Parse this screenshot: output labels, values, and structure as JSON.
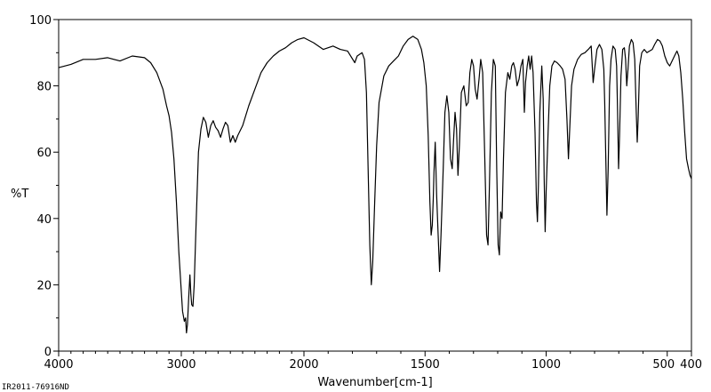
{
  "chart_data": {
    "type": "line",
    "xlabel": "Wavenumber[cm-1]",
    "ylabel": "%T",
    "xlim": [
      4000,
      400
    ],
    "ylim": [
      0,
      100
    ],
    "x_ticks": [
      4000,
      3000,
      2000,
      1500,
      1000,
      500,
      400
    ],
    "x_tick_labels": [
      "4000",
      "3000",
      "2000",
      "1500",
      "1000",
      "500",
      "400"
    ],
    "y_ticks": [
      0,
      20,
      40,
      60,
      80,
      100
    ],
    "y_tick_labels": [
      "0",
      "20",
      "40",
      "60",
      "80",
      "100"
    ],
    "grid": false,
    "line_color": "#000000",
    "footer_id": "IR2011-76916ND",
    "series": [
      {
        "points": [
          [
            4000,
            85.5
          ],
          [
            3900,
            86.5
          ],
          [
            3800,
            88
          ],
          [
            3700,
            88
          ],
          [
            3600,
            88.5
          ],
          [
            3500,
            87.5
          ],
          [
            3400,
            89
          ],
          [
            3300,
            88.5
          ],
          [
            3250,
            87
          ],
          [
            3200,
            84
          ],
          [
            3150,
            79
          ],
          [
            3120,
            74
          ],
          [
            3100,
            71
          ],
          [
            3080,
            66
          ],
          [
            3060,
            58
          ],
          [
            3040,
            45
          ],
          [
            3020,
            30
          ],
          [
            3000,
            18
          ],
          [
            2990,
            12
          ],
          [
            2975,
            9
          ],
          [
            2965,
            10
          ],
          [
            2958,
            5.5
          ],
          [
            2950,
            8
          ],
          [
            2940,
            16
          ],
          [
            2930,
            23
          ],
          [
            2922,
            17
          ],
          [
            2915,
            14
          ],
          [
            2905,
            13.5
          ],
          [
            2895,
            20
          ],
          [
            2880,
            38
          ],
          [
            2860,
            60
          ],
          [
            2840,
            67
          ],
          [
            2820,
            70.5
          ],
          [
            2800,
            69
          ],
          [
            2780,
            64.5
          ],
          [
            2760,
            68
          ],
          [
            2740,
            69.5
          ],
          [
            2720,
            67.5
          ],
          [
            2700,
            66.5
          ],
          [
            2680,
            64.5
          ],
          [
            2660,
            67
          ],
          [
            2640,
            69
          ],
          [
            2620,
            68
          ],
          [
            2600,
            63
          ],
          [
            2580,
            65
          ],
          [
            2560,
            63
          ],
          [
            2540,
            65
          ],
          [
            2500,
            68
          ],
          [
            2450,
            74
          ],
          [
            2400,
            79
          ],
          [
            2350,
            84
          ],
          [
            2300,
            87
          ],
          [
            2250,
            89
          ],
          [
            2200,
            90.5
          ],
          [
            2150,
            91.5
          ],
          [
            2100,
            93
          ],
          [
            2050,
            94
          ],
          [
            2000,
            94.5
          ],
          [
            1960,
            93
          ],
          [
            1920,
            91
          ],
          [
            1880,
            92
          ],
          [
            1850,
            91
          ],
          [
            1820,
            90.5
          ],
          [
            1790,
            87
          ],
          [
            1780,
            89
          ],
          [
            1760,
            90
          ],
          [
            1750,
            88
          ],
          [
            1742,
            78
          ],
          [
            1735,
            55
          ],
          [
            1728,
            32
          ],
          [
            1722,
            20
          ],
          [
            1716,
            27
          ],
          [
            1708,
            45
          ],
          [
            1700,
            62
          ],
          [
            1690,
            75
          ],
          [
            1670,
            83
          ],
          [
            1650,
            86
          ],
          [
            1630,
            87.5
          ],
          [
            1610,
            89
          ],
          [
            1590,
            92
          ],
          [
            1570,
            94
          ],
          [
            1550,
            95
          ],
          [
            1530,
            94
          ],
          [
            1515,
            91
          ],
          [
            1505,
            87
          ],
          [
            1495,
            80
          ],
          [
            1487,
            65
          ],
          [
            1480,
            45
          ],
          [
            1475,
            35
          ],
          [
            1470,
            38
          ],
          [
            1466,
            46
          ],
          [
            1463,
            54
          ],
          [
            1458,
            63
          ],
          [
            1452,
            47
          ],
          [
            1446,
            35
          ],
          [
            1440,
            24
          ],
          [
            1434,
            35
          ],
          [
            1425,
            55
          ],
          [
            1418,
            72
          ],
          [
            1410,
            77
          ],
          [
            1402,
            72
          ],
          [
            1395,
            58
          ],
          [
            1388,
            55
          ],
          [
            1382,
            64
          ],
          [
            1376,
            72
          ],
          [
            1370,
            67
          ],
          [
            1364,
            53
          ],
          [
            1358,
            62
          ],
          [
            1350,
            78
          ],
          [
            1340,
            80
          ],
          [
            1330,
            74
          ],
          [
            1322,
            75
          ],
          [
            1315,
            84
          ],
          [
            1307,
            88
          ],
          [
            1300,
            86
          ],
          [
            1293,
            79
          ],
          [
            1285,
            76
          ],
          [
            1277,
            82
          ],
          [
            1270,
            88
          ],
          [
            1262,
            84
          ],
          [
            1254,
            60
          ],
          [
            1246,
            35
          ],
          [
            1240,
            32
          ],
          [
            1234,
            50
          ],
          [
            1226,
            78
          ],
          [
            1218,
            88
          ],
          [
            1210,
            86
          ],
          [
            1204,
            55
          ],
          [
            1198,
            32
          ],
          [
            1193,
            29
          ],
          [
            1188,
            42
          ],
          [
            1182,
            40
          ],
          [
            1176,
            58
          ],
          [
            1168,
            78
          ],
          [
            1158,
            84
          ],
          [
            1150,
            82
          ],
          [
            1142,
            86
          ],
          [
            1135,
            87
          ],
          [
            1128,
            85
          ],
          [
            1120,
            80
          ],
          [
            1112,
            82
          ],
          [
            1104,
            86
          ],
          [
            1096,
            88
          ],
          [
            1090,
            72
          ],
          [
            1085,
            81
          ],
          [
            1078,
            86
          ],
          [
            1072,
            89
          ],
          [
            1066,
            85
          ],
          [
            1060,
            89
          ],
          [
            1054,
            84
          ],
          [
            1046,
            66
          ],
          [
            1040,
            45
          ],
          [
            1036,
            39
          ],
          [
            1032,
            50
          ],
          [
            1026,
            72
          ],
          [
            1018,
            86
          ],
          [
            1012,
            76
          ],
          [
            1008,
            52
          ],
          [
            1004,
            36
          ],
          [
            1000,
            48
          ],
          [
            992,
            66
          ],
          [
            985,
            80
          ],
          [
            976,
            86
          ],
          [
            966,
            87.5
          ],
          [
            955,
            87
          ],
          [
            942,
            86
          ],
          [
            932,
            85
          ],
          [
            922,
            82
          ],
          [
            914,
            70
          ],
          [
            908,
            58
          ],
          [
            902,
            68
          ],
          [
            895,
            80
          ],
          [
            885,
            85
          ],
          [
            870,
            88
          ],
          [
            855,
            89.5
          ],
          [
            840,
            90
          ],
          [
            826,
            91
          ],
          [
            814,
            92
          ],
          [
            806,
            81
          ],
          [
            800,
            85
          ],
          [
            790,
            91
          ],
          [
            780,
            92.5
          ],
          [
            770,
            91
          ],
          [
            762,
            85
          ],
          [
            758,
            75
          ],
          [
            754,
            60
          ],
          [
            749,
            41
          ],
          [
            744,
            55
          ],
          [
            738,
            80
          ],
          [
            732,
            88
          ],
          [
            724,
            92
          ],
          [
            715,
            91
          ],
          [
            709,
            86
          ],
          [
            705,
            72
          ],
          [
            701,
            55
          ],
          [
            697,
            65
          ],
          [
            691,
            83
          ],
          [
            684,
            91
          ],
          [
            677,
            91.5
          ],
          [
            672,
            88
          ],
          [
            667,
            80
          ],
          [
            662,
            85
          ],
          [
            656,
            92
          ],
          [
            648,
            94
          ],
          [
            641,
            93
          ],
          [
            634,
            88
          ],
          [
            628,
            72
          ],
          [
            624,
            63
          ],
          [
            620,
            70
          ],
          [
            614,
            86
          ],
          [
            605,
            90
          ],
          [
            595,
            91
          ],
          [
            584,
            90
          ],
          [
            573,
            90.5
          ],
          [
            562,
            91
          ],
          [
            552,
            92.5
          ],
          [
            540,
            94
          ],
          [
            530,
            93.5
          ],
          [
            520,
            92
          ],
          [
            510,
            89
          ],
          [
            500,
            87
          ],
          [
            490,
            86
          ],
          [
            480,
            87.5
          ],
          [
            470,
            89
          ],
          [
            460,
            90.5
          ],
          [
            452,
            89
          ],
          [
            444,
            84
          ],
          [
            436,
            76
          ],
          [
            428,
            66
          ],
          [
            420,
            58
          ],
          [
            412,
            55
          ],
          [
            406,
            53
          ],
          [
            400,
            52
          ]
        ]
      }
    ]
  }
}
